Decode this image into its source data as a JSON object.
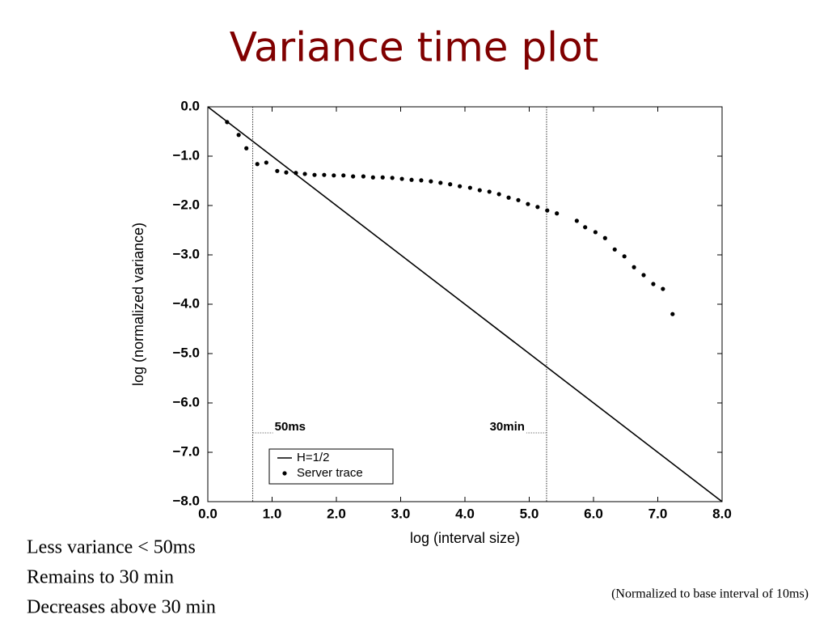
{
  "chart_data": {
    "type": "scatter",
    "title": "Variance time plot",
    "x_label": "log (interval size)",
    "y_label": "log (normalized variance)",
    "xlim": [
      0,
      8
    ],
    "ylim": [
      -8,
      0
    ],
    "xticks": [
      {
        "value": 0,
        "label": "0.0"
      },
      {
        "value": 1,
        "label": "1.0"
      },
      {
        "value": 2,
        "label": "2.0"
      },
      {
        "value": 3,
        "label": "3.0"
      },
      {
        "value": 4,
        "label": "4.0"
      },
      {
        "value": 5,
        "label": "5.0"
      },
      {
        "value": 6,
        "label": "6.0"
      },
      {
        "value": 7,
        "label": "7.0"
      },
      {
        "value": 8,
        "label": "8.0"
      }
    ],
    "yticks": [
      {
        "value": 0,
        "label": "0.0"
      },
      {
        "value": -1,
        "label": "−1.0"
      },
      {
        "value": -2,
        "label": "−2.0"
      },
      {
        "value": -3,
        "label": "−3.0"
      },
      {
        "value": -4,
        "label": "−4.0"
      },
      {
        "value": -5,
        "label": "−5.0"
      },
      {
        "value": -6,
        "label": "−6.0"
      },
      {
        "value": -7,
        "label": "−7.0"
      },
      {
        "value": -8,
        "label": "−8.0"
      }
    ],
    "series": [
      {
        "name": "H=1/2",
        "style": "line",
        "color": "#000000",
        "x": [
          0,
          8
        ],
        "values": [
          0,
          -8
        ]
      },
      {
        "name": "Server trace",
        "style": "points",
        "color": "#000000",
        "x": [
          0.3,
          0.48,
          0.6,
          0.77,
          0.91,
          1.08,
          1.22,
          1.37,
          1.51,
          1.66,
          1.81,
          1.96,
          2.11,
          2.26,
          2.42,
          2.57,
          2.72,
          2.87,
          3.02,
          3.17,
          3.32,
          3.47,
          3.62,
          3.77,
          3.92,
          4.08,
          4.23,
          4.38,
          4.53,
          4.68,
          4.83,
          4.98,
          5.13,
          5.28,
          5.43,
          5.74,
          5.87,
          6.03,
          6.18,
          6.33,
          6.48,
          6.63,
          6.78,
          6.93,
          7.08,
          7.23
        ],
        "values": [
          -0.31,
          -0.57,
          -0.84,
          -1.16,
          -1.13,
          -1.3,
          -1.33,
          -1.34,
          -1.36,
          -1.38,
          -1.38,
          -1.39,
          -1.39,
          -1.41,
          -1.41,
          -1.43,
          -1.43,
          -1.44,
          -1.46,
          -1.48,
          -1.49,
          -1.51,
          -1.54,
          -1.57,
          -1.61,
          -1.64,
          -1.69,
          -1.72,
          -1.77,
          -1.84,
          -1.89,
          -1.97,
          -2.03,
          -2.1,
          -2.16,
          -2.31,
          -2.44,
          -2.54,
          -2.66,
          -2.89,
          -3.03,
          -3.25,
          -3.41,
          -3.59,
          -3.69,
          -4.2
        ]
      }
    ],
    "vlines": [
      {
        "value": 0.7,
        "label": "50ms"
      },
      {
        "value": 5.27,
        "label": "30min"
      }
    ],
    "legend": "lower-left"
  },
  "bullets": [
    "Less variance < 50ms",
    "Remains to 30 min",
    "Decreases above 30 min"
  ],
  "note": "(Normalized to base interval of 10ms)"
}
